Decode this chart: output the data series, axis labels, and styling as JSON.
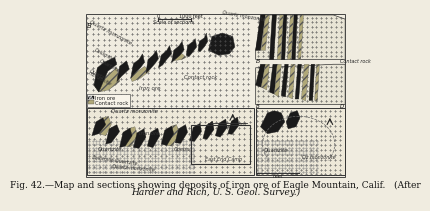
{
  "bg_color": "#f0ece0",
  "outer_bg": "#ede8d8",
  "border_color": "#444444",
  "text_color": "#111111",
  "caption_line1": "Fig. 42.—Map and sections showing deposits of iron ore of Eagle Mountain, Calif.   (After",
  "caption_line2": "Harder and Rich, U. S. Geol. Survey.)",
  "cap_fs": 6.5,
  "plus_color": "#555555",
  "dot_color": "#888888",
  "ore_color": "#1a1a1a",
  "contact_color": "#b0a878",
  "hatch_color": "#666666"
}
